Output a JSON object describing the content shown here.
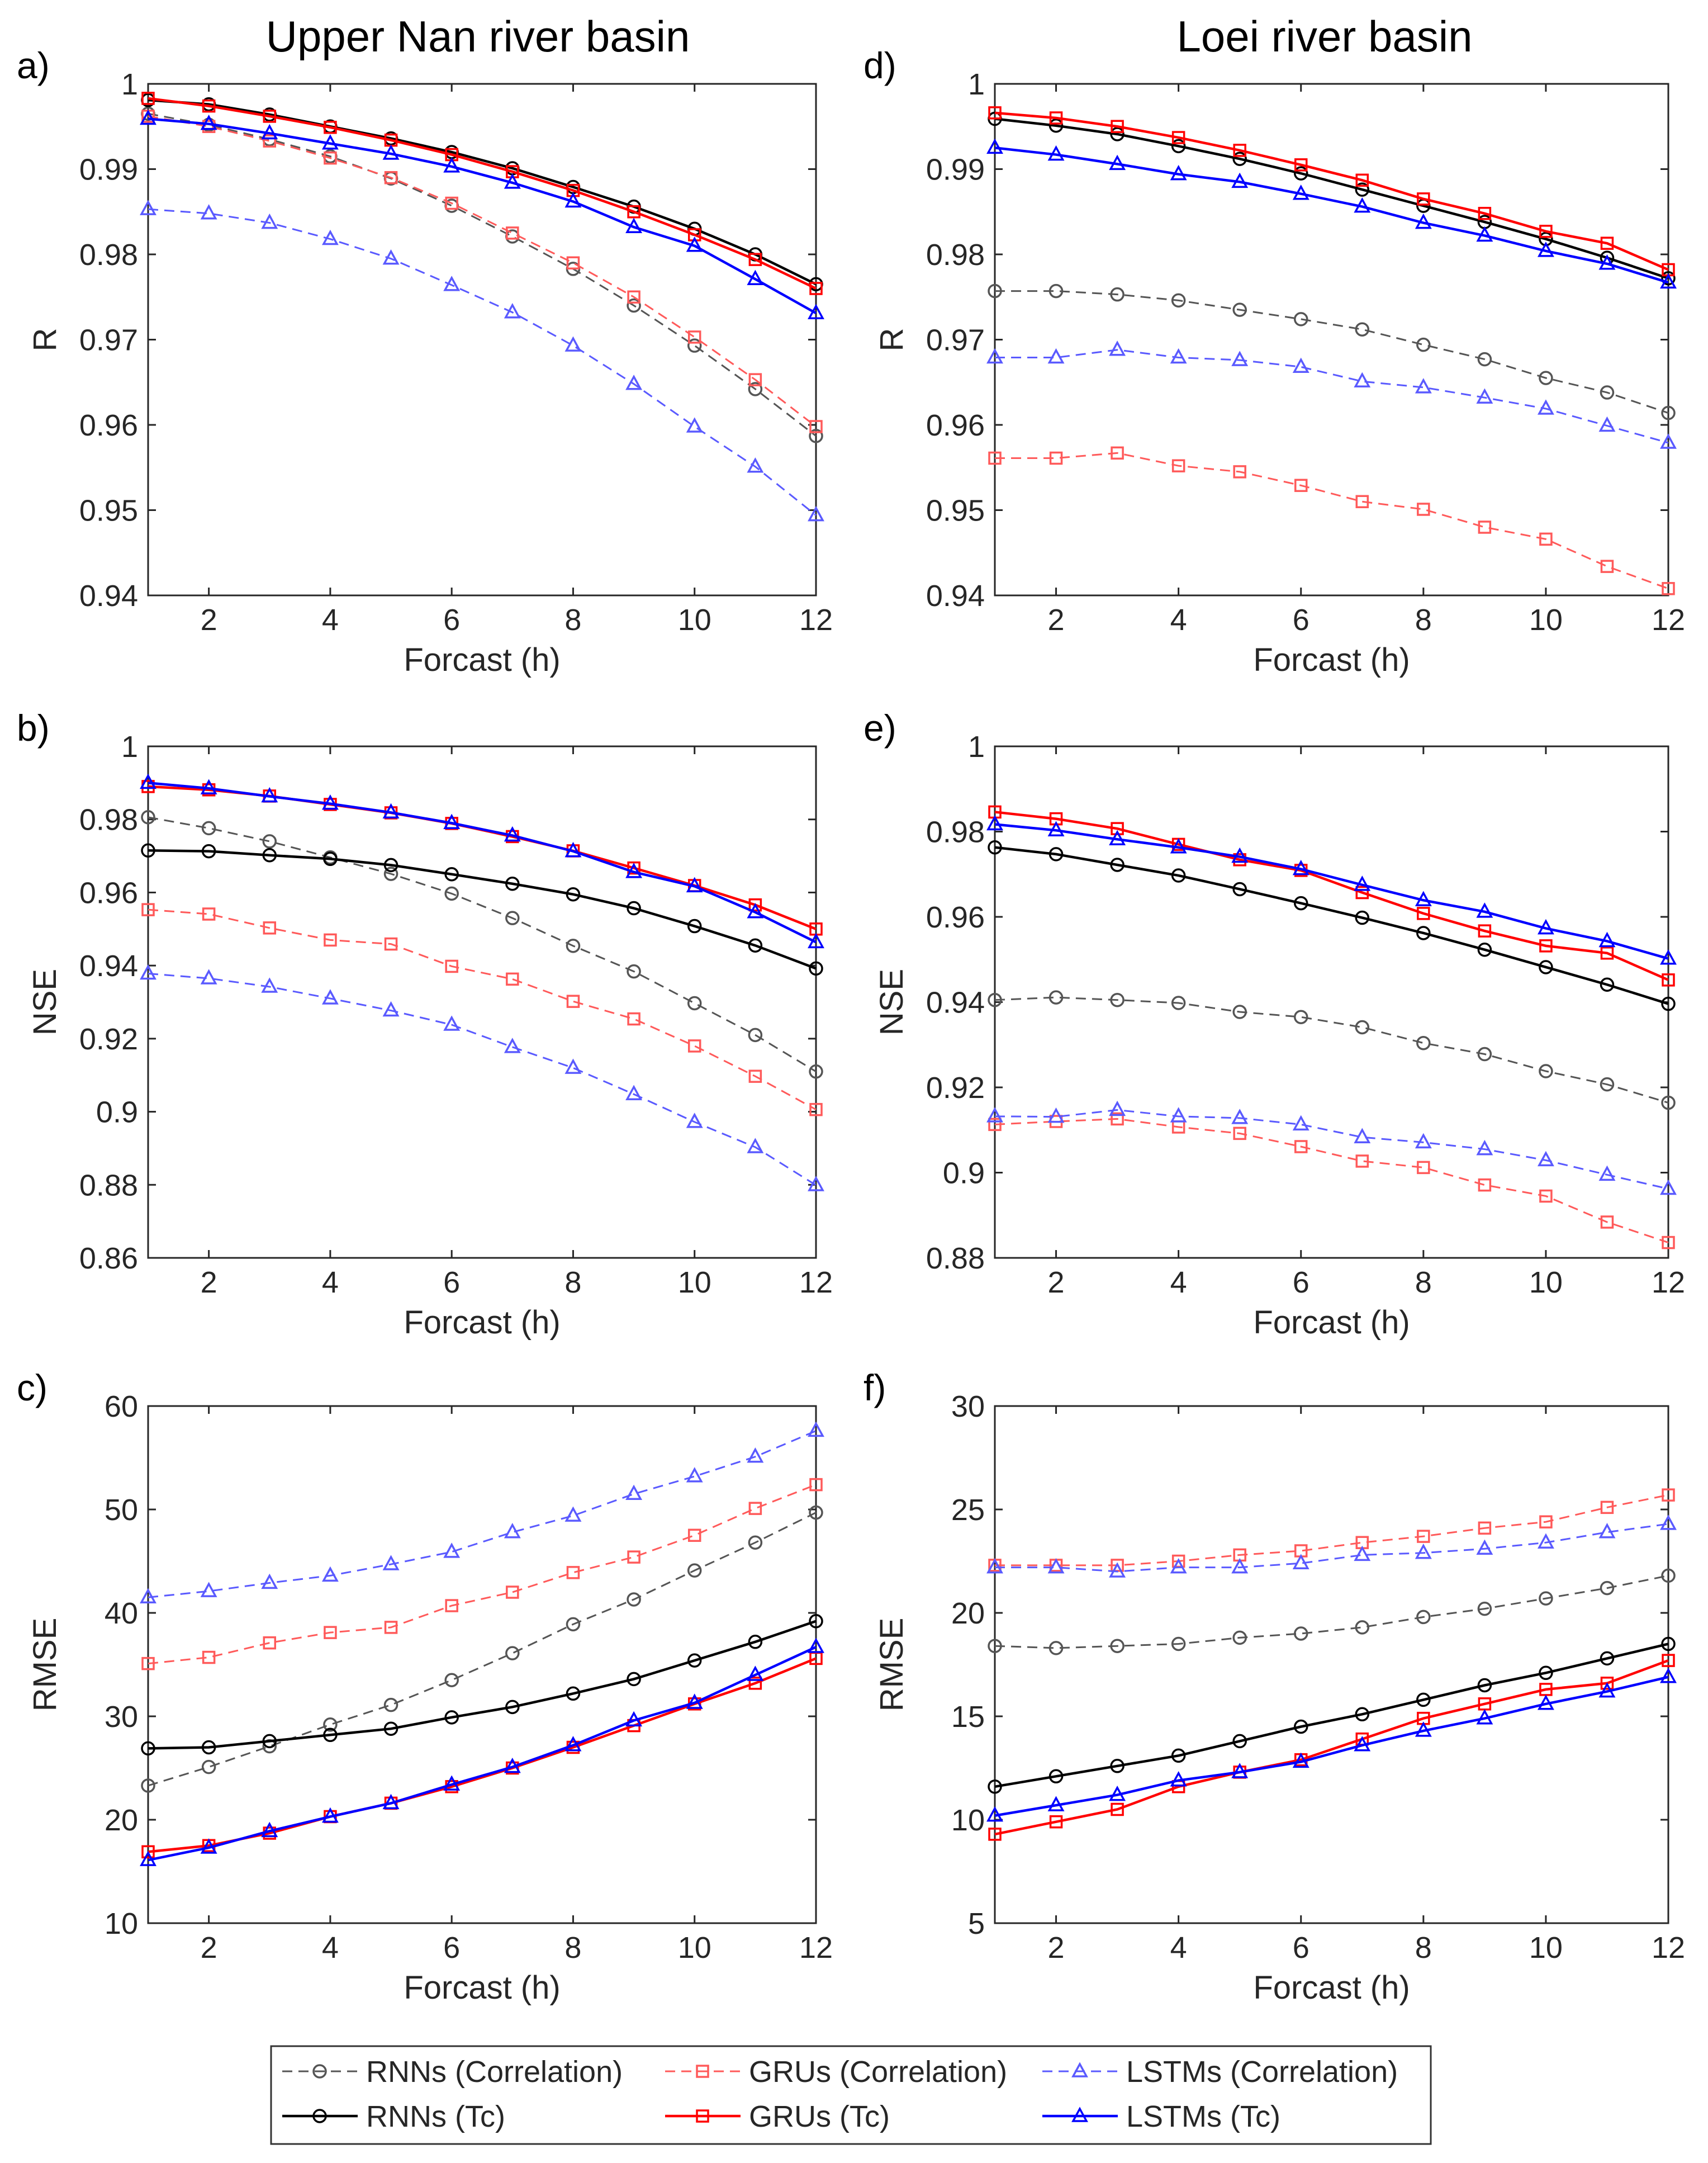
{
  "figure": {
    "column_titles": [
      "Upper Nan river basin",
      "Loei  river basin"
    ],
    "legend": [
      {
        "label": "RNNs (Correlation)",
        "color": "#555555",
        "dash": true,
        "marker": "circle"
      },
      {
        "label": "GRUs (Correlation)",
        "color": "#ff5a5a",
        "dash": true,
        "marker": "square"
      },
      {
        "label": "LSTMs (Correlation)",
        "color": "#5a5aff",
        "dash": true,
        "marker": "triangle"
      },
      {
        "label": "RNNs (Tc)",
        "color": "#000000",
        "dash": false,
        "marker": "circle"
      },
      {
        "label": "GRUs (Tc)",
        "color": "#ff0000",
        "dash": false,
        "marker": "square"
      },
      {
        "label": "LSTMs (Tc)",
        "color": "#0000ff",
        "dash": false,
        "marker": "triangle"
      }
    ]
  },
  "chart_data": [
    {
      "panel": "a)",
      "type": "line",
      "title": "Upper Nan river basin",
      "xlabel": "Forcast (h)",
      "ylabel": "R",
      "xlim": [
        1,
        12
      ],
      "xticks": [
        2,
        4,
        6,
        8,
        10,
        12
      ],
      "xtick_labels": [
        "2",
        "4",
        "6",
        "8",
        "10",
        "12"
      ],
      "ylim": [
        0.94,
        1.0
      ],
      "yticks": [
        0.94,
        0.95,
        0.96,
        0.97,
        0.98,
        0.99,
        1.0
      ],
      "ytick_labels": [
        "0.94",
        "0.95",
        "0.96",
        "0.97",
        "0.98",
        "0.99",
        "1"
      ],
      "x": [
        1,
        2,
        3,
        4,
        5,
        6,
        7,
        8,
        9,
        10,
        11,
        12
      ],
      "series": [
        {
          "name": "RNNs (Correlation)",
          "values": [
            0.9965,
            0.9952,
            0.9935,
            0.9915,
            0.9889,
            0.9857,
            0.9821,
            0.9783,
            0.974,
            0.9693,
            0.9642,
            0.9587
          ]
        },
        {
          "name": "GRUs (Correlation)",
          "values": [
            0.9962,
            0.995,
            0.9933,
            0.9913,
            0.989,
            0.986,
            0.9825,
            0.979,
            0.975,
            0.9703,
            0.9653,
            0.9598
          ]
        },
        {
          "name": "LSTMs (Correlation)",
          "values": [
            0.9853,
            0.9848,
            0.9837,
            0.9818,
            0.9795,
            0.9764,
            0.9732,
            0.9693,
            0.9648,
            0.9598,
            0.9551,
            0.9494
          ]
        },
        {
          "name": "RNNs (Tc)",
          "values": [
            0.9981,
            0.9976,
            0.9964,
            0.995,
            0.9936,
            0.992,
            0.9901,
            0.9879,
            0.9856,
            0.983,
            0.98,
            0.9765
          ]
        },
        {
          "name": "GRUs (Tc)",
          "values": [
            0.9983,
            0.9974,
            0.9962,
            0.9949,
            0.9934,
            0.9917,
            0.9897,
            0.9875,
            0.985,
            0.9823,
            0.9794,
            0.976
          ]
        },
        {
          "name": "LSTMs (Tc)",
          "values": [
            0.9959,
            0.9953,
            0.9942,
            0.993,
            0.9918,
            0.9903,
            0.9884,
            0.9862,
            0.9832,
            0.981,
            0.9771,
            0.9731
          ]
        }
      ]
    },
    {
      "panel": "d)",
      "type": "line",
      "title": "Loei  river basin",
      "xlabel": "Forcast (h)",
      "ylabel": "R",
      "xlim": [
        1,
        12
      ],
      "xticks": [
        2,
        4,
        6,
        8,
        10,
        12
      ],
      "xtick_labels": [
        "2",
        "4",
        "6",
        "8",
        "10",
        "12"
      ],
      "ylim": [
        0.94,
        1.0
      ],
      "yticks": [
        0.94,
        0.95,
        0.96,
        0.97,
        0.98,
        0.99,
        1.0
      ],
      "ytick_labels": [
        "0.94",
        "0.95",
        "0.96",
        "0.97",
        "0.98",
        "0.99",
        "1"
      ],
      "x": [
        1,
        2,
        3,
        4,
        5,
        6,
        7,
        8,
        9,
        10,
        11,
        12
      ],
      "series": [
        {
          "name": "RNNs (Correlation)",
          "values": [
            0.9757,
            0.9757,
            0.9753,
            0.9746,
            0.9735,
            0.9724,
            0.9712,
            0.9694,
            0.9677,
            0.9655,
            0.9638,
            0.9614
          ]
        },
        {
          "name": "GRUs (Correlation)",
          "values": [
            0.9561,
            0.9561,
            0.9567,
            0.9552,
            0.9545,
            0.9529,
            0.951,
            0.9501,
            0.948,
            0.9466,
            0.9434,
            0.9408
          ]
        },
        {
          "name": "LSTMs (Correlation)",
          "values": [
            0.9679,
            0.9679,
            0.9688,
            0.9679,
            0.9676,
            0.9668,
            0.9651,
            0.9644,
            0.9632,
            0.9619,
            0.9599,
            0.9579
          ]
        },
        {
          "name": "RNNs (Tc)",
          "values": [
            0.9959,
            0.9951,
            0.9941,
            0.9927,
            0.9912,
            0.9895,
            0.9876,
            0.9857,
            0.9838,
            0.9818,
            0.9796,
            0.9772
          ]
        },
        {
          "name": "GRUs (Tc)",
          "values": [
            0.9966,
            0.996,
            0.995,
            0.9937,
            0.9922,
            0.9905,
            0.9887,
            0.9865,
            0.9848,
            0.9827,
            0.9813,
            0.9782
          ]
        },
        {
          "name": "LSTMs (Tc)",
          "values": [
            0.9925,
            0.9917,
            0.9906,
            0.9894,
            0.9885,
            0.9871,
            0.9856,
            0.9837,
            0.9822,
            0.9804,
            0.9789,
            0.9767
          ]
        }
      ]
    },
    {
      "panel": "b)",
      "type": "line",
      "xlabel": "Forcast (h)",
      "ylabel": "NSE",
      "xlim": [
        1,
        12
      ],
      "xticks": [
        2,
        4,
        6,
        8,
        10,
        12
      ],
      "xtick_labels": [
        "2",
        "4",
        "6",
        "8",
        "10",
        "12"
      ],
      "ylim": [
        0.86,
        1.0
      ],
      "yticks": [
        0.86,
        0.88,
        0.9,
        0.92,
        0.94,
        0.96,
        0.98,
        1.0
      ],
      "ytick_labels": [
        "0.86",
        "0.88",
        "0.9",
        "0.92",
        "0.94",
        "0.96",
        "0.98",
        "1"
      ],
      "x": [
        1,
        2,
        3,
        4,
        5,
        6,
        7,
        8,
        9,
        10,
        11,
        12
      ],
      "series": [
        {
          "name": "RNNs (Correlation)",
          "values": [
            0.9806,
            0.9776,
            0.974,
            0.9696,
            0.9651,
            0.9597,
            0.953,
            0.9454,
            0.9384,
            0.9297,
            0.921,
            0.911
          ]
        },
        {
          "name": "GRUs (Correlation)",
          "values": [
            0.9553,
            0.9541,
            0.9503,
            0.947,
            0.9459,
            0.9398,
            0.9363,
            0.9302,
            0.9254,
            0.918,
            0.9097,
            0.9006
          ]
        },
        {
          "name": "LSTMs (Correlation)",
          "values": [
            0.9378,
            0.9365,
            0.9342,
            0.931,
            0.9277,
            0.9238,
            0.9177,
            0.912,
            0.9048,
            0.8972,
            0.8903,
            0.8799
          ]
        },
        {
          "name": "RNNs (Tc)",
          "values": [
            0.9715,
            0.9713,
            0.9702,
            0.9692,
            0.9675,
            0.965,
            0.9624,
            0.9595,
            0.9557,
            0.9508,
            0.9455,
            0.9392
          ]
        },
        {
          "name": "GRUs (Tc)",
          "values": [
            0.989,
            0.9881,
            0.9864,
            0.9841,
            0.9818,
            0.9789,
            0.9753,
            0.9714,
            0.9667,
            0.9619,
            0.9566,
            0.95
          ]
        },
        {
          "name": "LSTMs (Tc)",
          "values": [
            0.99,
            0.9885,
            0.9863,
            0.9843,
            0.9819,
            0.979,
            0.9756,
            0.9713,
            0.9656,
            0.9617,
            0.9546,
            0.9464
          ]
        }
      ]
    },
    {
      "panel": "e)",
      "type": "line",
      "xlabel": "Forcast (h)",
      "ylabel": "NSE",
      "xlim": [
        1,
        12
      ],
      "xticks": [
        2,
        4,
        6,
        8,
        10,
        12
      ],
      "xtick_labels": [
        "2",
        "4",
        "6",
        "8",
        "10",
        "12"
      ],
      "ylim": [
        0.88,
        1.0
      ],
      "yticks": [
        0.88,
        0.9,
        0.92,
        0.94,
        0.96,
        0.98,
        1.0
      ],
      "ytick_labels": [
        "0.88",
        "0.9",
        "0.92",
        "0.94",
        "0.96",
        "0.98",
        "1"
      ],
      "x": [
        1,
        2,
        3,
        4,
        5,
        6,
        7,
        8,
        9,
        10,
        11,
        12
      ],
      "series": [
        {
          "name": "RNNs (Correlation)",
          "values": [
            0.9405,
            0.9411,
            0.9405,
            0.9398,
            0.9377,
            0.9365,
            0.9341,
            0.9304,
            0.9278,
            0.9238,
            0.9207,
            0.9164
          ]
        },
        {
          "name": "GRUs (Correlation)",
          "values": [
            0.9113,
            0.912,
            0.9126,
            0.9107,
            0.9092,
            0.9061,
            0.9027,
            0.9012,
            0.8971,
            0.8945,
            0.8884,
            0.8836
          ]
        },
        {
          "name": "LSTMs (Correlation)",
          "values": [
            0.9132,
            0.9131,
            0.9147,
            0.9132,
            0.9128,
            0.9113,
            0.9083,
            0.9071,
            0.9055,
            0.9029,
            0.8995,
            0.8962
          ]
        },
        {
          "name": "RNNs (Tc)",
          "values": [
            0.9763,
            0.9747,
            0.9722,
            0.9697,
            0.9665,
            0.9632,
            0.9598,
            0.9562,
            0.9523,
            0.9482,
            0.9441,
            0.9396
          ]
        },
        {
          "name": "GRUs (Tc)",
          "values": [
            0.9846,
            0.983,
            0.9807,
            0.977,
            0.9734,
            0.9709,
            0.9657,
            0.9608,
            0.9567,
            0.9532,
            0.9515,
            0.9452
          ]
        },
        {
          "name": "LSTMs (Tc)",
          "values": [
            0.9817,
            0.9803,
            0.9782,
            0.9763,
            0.9741,
            0.9712,
            0.9675,
            0.9639,
            0.9612,
            0.9573,
            0.9543,
            0.9502
          ]
        }
      ]
    },
    {
      "panel": "c)",
      "type": "line",
      "xlabel": "Forcast (h)",
      "ylabel": "RMSE",
      "xlim": [
        1,
        12
      ],
      "xticks": [
        2,
        4,
        6,
        8,
        10,
        12
      ],
      "xtick_labels": [
        "2",
        "4",
        "6",
        "8",
        "10",
        "12"
      ],
      "ylim": [
        10,
        60
      ],
      "yticks": [
        10,
        20,
        30,
        40,
        50,
        60
      ],
      "ytick_labels": [
        "10",
        "20",
        "30",
        "40",
        "50",
        "60"
      ],
      "x": [
        1,
        2,
        3,
        4,
        5,
        6,
        7,
        8,
        9,
        10,
        11,
        12
      ],
      "series": [
        {
          "name": "RNNs (Correlation)",
          "values": [
            23.3,
            25.1,
            27.1,
            29.2,
            31.1,
            33.5,
            36.1,
            38.9,
            41.3,
            44.1,
            46.8,
            49.7
          ]
        },
        {
          "name": "GRUs (Correlation)",
          "values": [
            35.1,
            35.7,
            37.1,
            38.1,
            38.6,
            40.7,
            42.0,
            43.9,
            45.4,
            47.5,
            50.1,
            52.4
          ]
        },
        {
          "name": "LSTMs (Correlation)",
          "values": [
            41.5,
            42.1,
            42.9,
            43.6,
            44.7,
            45.9,
            47.8,
            49.4,
            51.5,
            53.2,
            55.1,
            57.6
          ]
        },
        {
          "name": "RNNs (Tc)",
          "values": [
            26.9,
            27.0,
            27.6,
            28.2,
            28.8,
            29.9,
            30.9,
            32.2,
            33.6,
            35.4,
            37.2,
            39.2
          ]
        },
        {
          "name": "GRUs (Tc)",
          "values": [
            16.9,
            17.5,
            18.7,
            20.3,
            21.6,
            23.2,
            25.0,
            27.0,
            29.1,
            31.2,
            33.2,
            35.6
          ]
        },
        {
          "name": "LSTMs (Tc)",
          "values": [
            16.1,
            17.3,
            18.9,
            20.3,
            21.6,
            23.4,
            25.1,
            27.2,
            29.6,
            31.3,
            34.0,
            36.7
          ]
        }
      ]
    },
    {
      "panel": "f)",
      "type": "line",
      "xlabel": "Forcast (h)",
      "ylabel": "RMSE",
      "xlim": [
        1,
        12
      ],
      "xticks": [
        2,
        4,
        6,
        8,
        10,
        12
      ],
      "xtick_labels": [
        "2",
        "4",
        "6",
        "8",
        "10",
        "12"
      ],
      "ylim": [
        5,
        30
      ],
      "yticks": [
        5,
        10,
        15,
        20,
        25,
        30
      ],
      "ytick_labels": [
        "5",
        "10",
        "15",
        "20",
        "25",
        "30"
      ],
      "x": [
        1,
        2,
        3,
        4,
        5,
        6,
        7,
        8,
        9,
        10,
        11,
        12
      ],
      "series": [
        {
          "name": "RNNs (Correlation)",
          "values": [
            18.4,
            18.3,
            18.4,
            18.5,
            18.8,
            19.0,
            19.3,
            19.8,
            20.2,
            20.7,
            21.2,
            21.8
          ]
        },
        {
          "name": "GRUs (Correlation)",
          "values": [
            22.3,
            22.3,
            22.3,
            22.5,
            22.8,
            23.0,
            23.4,
            23.7,
            24.1,
            24.4,
            25.1,
            25.7
          ]
        },
        {
          "name": "LSTMs (Correlation)",
          "values": [
            22.2,
            22.2,
            22.0,
            22.2,
            22.2,
            22.4,
            22.8,
            22.9,
            23.1,
            23.4,
            23.9,
            24.3
          ]
        },
        {
          "name": "RNNs (Tc)",
          "values": [
            11.6,
            12.1,
            12.6,
            13.1,
            13.8,
            14.5,
            15.1,
            15.8,
            16.5,
            17.1,
            17.8,
            18.5
          ]
        },
        {
          "name": "GRUs (Tc)",
          "values": [
            9.3,
            9.9,
            10.5,
            11.6,
            12.3,
            12.9,
            13.9,
            14.9,
            15.6,
            16.3,
            16.6,
            17.7
          ]
        },
        {
          "name": "LSTMs (Tc)",
          "values": [
            10.2,
            10.7,
            11.2,
            11.9,
            12.3,
            12.8,
            13.6,
            14.3,
            14.9,
            15.6,
            16.2,
            16.9
          ]
        }
      ]
    }
  ]
}
